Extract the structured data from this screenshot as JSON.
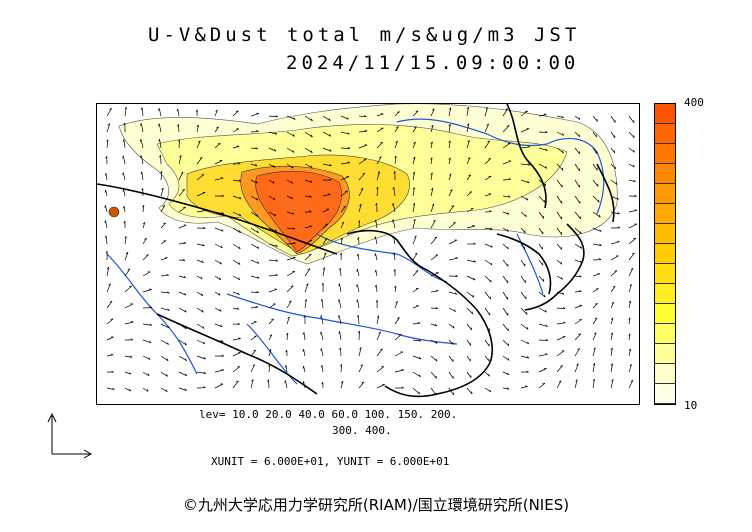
{
  "title_line1": "U-V&Dust total m/s&ug/m3 JST",
  "title_line2": "2024/11/15.09:00:00",
  "colorbar": {
    "max_label": "400",
    "min_label": "10",
    "colors": [
      "#ffffe6",
      "#ffffcc",
      "#ffff99",
      "#ffff66",
      "#ffff33",
      "#ffee22",
      "#ffdd11",
      "#ffcc00",
      "#ffbb00",
      "#ffaa00",
      "#ff9900",
      "#ff8800",
      "#ff7700",
      "#ff6600",
      "#ff5500"
    ]
  },
  "levels_line1": "lev= 10.0 20.0 40.0 60.0 100. 150. 200.",
  "levels_line2": "300. 400.",
  "units_line": "XUNIT = 6.000E+01, YUNIT = 6.000E+01",
  "copyright": "©九州大学応用力学研究所(RIAM)/国立環境研究所(NIES)"
}
